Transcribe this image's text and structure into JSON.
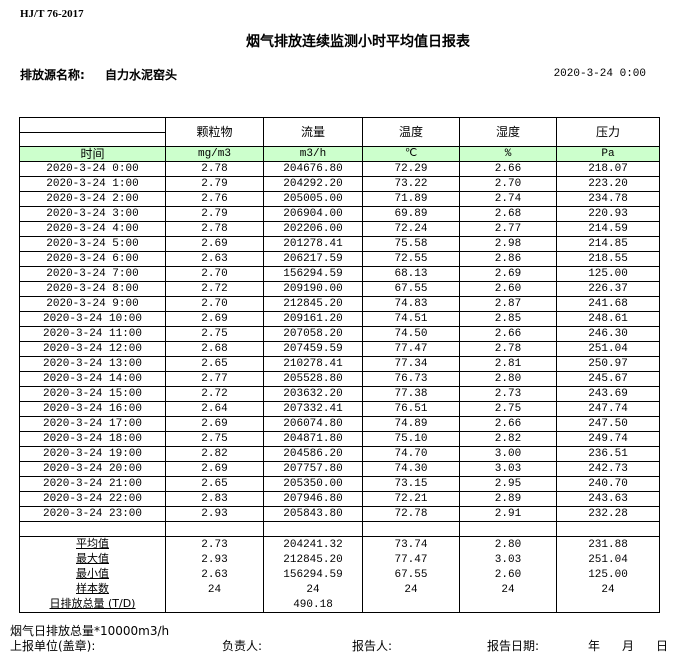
{
  "standard": "HJ/T  76-2017",
  "title": "烟气排放连续监测小时平均值日报表",
  "source_label": "排放源名称:",
  "source_name": "自力水泥窑头",
  "report_datetime": "2020-3-24 0:00",
  "table": {
    "time_header": "时间",
    "columns": [
      {
        "name": "颗粒物",
        "unit": "mg/m3"
      },
      {
        "name": "流量",
        "unit": "m3/h"
      },
      {
        "name": "温度",
        "unit": "℃"
      },
      {
        "name": "湿度",
        "unit": "%"
      },
      {
        "name": "压力",
        "unit": "Pa"
      }
    ],
    "rows": [
      [
        "2020-3-24 0:00",
        "2.78",
        "204676.80",
        "72.29",
        "2.66",
        "218.07"
      ],
      [
        "2020-3-24 1:00",
        "2.79",
        "204292.20",
        "73.22",
        "2.70",
        "223.20"
      ],
      [
        "2020-3-24 2:00",
        "2.76",
        "205005.00",
        "71.89",
        "2.74",
        "234.78"
      ],
      [
        "2020-3-24 3:00",
        "2.79",
        "206904.00",
        "69.89",
        "2.68",
        "220.93"
      ],
      [
        "2020-3-24 4:00",
        "2.78",
        "202206.00",
        "72.24",
        "2.77",
        "214.59"
      ],
      [
        "2020-3-24 5:00",
        "2.69",
        "201278.41",
        "75.58",
        "2.98",
        "214.85"
      ],
      [
        "2020-3-24 6:00",
        "2.63",
        "206217.59",
        "72.55",
        "2.86",
        "218.55"
      ],
      [
        "2020-3-24 7:00",
        "2.70",
        "156294.59",
        "68.13",
        "2.69",
        "125.00"
      ],
      [
        "2020-3-24 8:00",
        "2.72",
        "209190.00",
        "67.55",
        "2.60",
        "226.37"
      ],
      [
        "2020-3-24 9:00",
        "2.70",
        "212845.20",
        "74.83",
        "2.87",
        "241.68"
      ],
      [
        "2020-3-24 10:00",
        "2.69",
        "209161.20",
        "74.51",
        "2.85",
        "248.61"
      ],
      [
        "2020-3-24 11:00",
        "2.75",
        "207058.20",
        "74.50",
        "2.66",
        "246.30"
      ],
      [
        "2020-3-24 12:00",
        "2.68",
        "207459.59",
        "77.47",
        "2.78",
        "251.04"
      ],
      [
        "2020-3-24 13:00",
        "2.65",
        "210278.41",
        "77.34",
        "2.81",
        "250.97"
      ],
      [
        "2020-3-24 14:00",
        "2.77",
        "205528.80",
        "76.73",
        "2.80",
        "245.67"
      ],
      [
        "2020-3-24 15:00",
        "2.72",
        "203632.20",
        "77.38",
        "2.73",
        "243.69"
      ],
      [
        "2020-3-24 16:00",
        "2.64",
        "207332.41",
        "76.51",
        "2.75",
        "247.74"
      ],
      [
        "2020-3-24 17:00",
        "2.69",
        "206074.80",
        "74.89",
        "2.66",
        "247.50"
      ],
      [
        "2020-3-24 18:00",
        "2.75",
        "204871.80",
        "75.10",
        "2.82",
        "249.74"
      ],
      [
        "2020-3-24 19:00",
        "2.82",
        "204586.20",
        "74.70",
        "3.00",
        "236.51"
      ],
      [
        "2020-3-24 20:00",
        "2.69",
        "207757.80",
        "74.30",
        "3.03",
        "242.73"
      ],
      [
        "2020-3-24 21:00",
        "2.65",
        "205350.00",
        "73.15",
        "2.95",
        "240.70"
      ],
      [
        "2020-3-24 22:00",
        "2.83",
        "207946.80",
        "72.21",
        "2.89",
        "243.63"
      ],
      [
        "2020-3-24 23:00",
        "2.93",
        "205843.80",
        "72.78",
        "2.91",
        "232.28"
      ]
    ],
    "stats": [
      [
        "平均值",
        "2.73",
        "204241.32",
        "73.74",
        "2.80",
        "231.88"
      ],
      [
        "最大值",
        "2.93",
        "212845.20",
        "77.47",
        "3.03",
        "251.04"
      ],
      [
        "最小值",
        "2.63",
        "156294.59",
        "67.55",
        "2.60",
        "125.00"
      ],
      [
        "样本数",
        "24",
        "24",
        "24",
        "24",
        "24"
      ],
      [
        "日排放总量 (T/D)",
        "",
        "490.18",
        "",
        "",
        ""
      ]
    ]
  },
  "footer": {
    "note": "烟气日排放总量*10000m3/h",
    "unit_label": "上报单位(盖章):",
    "responsible_label": "负责人:",
    "reporter_label": "报告人:",
    "date_label": "报告日期:",
    "year": "年",
    "month": "月",
    "day": "日"
  },
  "colors": {
    "unit_row_bg": "#ccffcc"
  }
}
